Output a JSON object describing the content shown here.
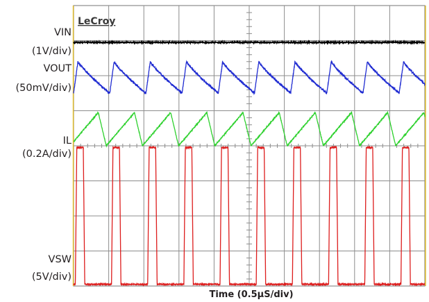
{
  "brand": "LeCroy",
  "colors": {
    "grid": "#8c8c8c",
    "border": "#8c8c8c",
    "accent_edge": "#e8c22a",
    "vin": "#000000",
    "vout": "#1f2bd1",
    "il": "#2fd12f",
    "vsw": "#dd1c1c"
  },
  "chart_data": {
    "type": "line",
    "title": "",
    "xlabel": "Time (0.5μS/div)",
    "ylabel": "",
    "x_divisions": 10,
    "y_divisions": 8,
    "x_units_per_div": "0.5μS",
    "switching_period_divs": 1.03,
    "series": [
      {
        "name": "VIN",
        "scale": "(1V/div)",
        "level_div": 6.95,
        "shape": "flat"
      },
      {
        "name": "VOUT",
        "scale": "(50mV/div)",
        "mean_div": 5.95,
        "ripple_div": 0.45,
        "shape": "sawtooth-decay"
      },
      {
        "name": "IL",
        "scale": "(0.2A/div)",
        "min_div": 4.0,
        "max_div": 4.95,
        "shape": "triangle"
      },
      {
        "name": "VSW",
        "scale": "(5V/div)",
        "low_div": 0.05,
        "high_div": 3.95,
        "duty_cycle": 0.22,
        "shape": "square"
      }
    ],
    "grid": true
  }
}
